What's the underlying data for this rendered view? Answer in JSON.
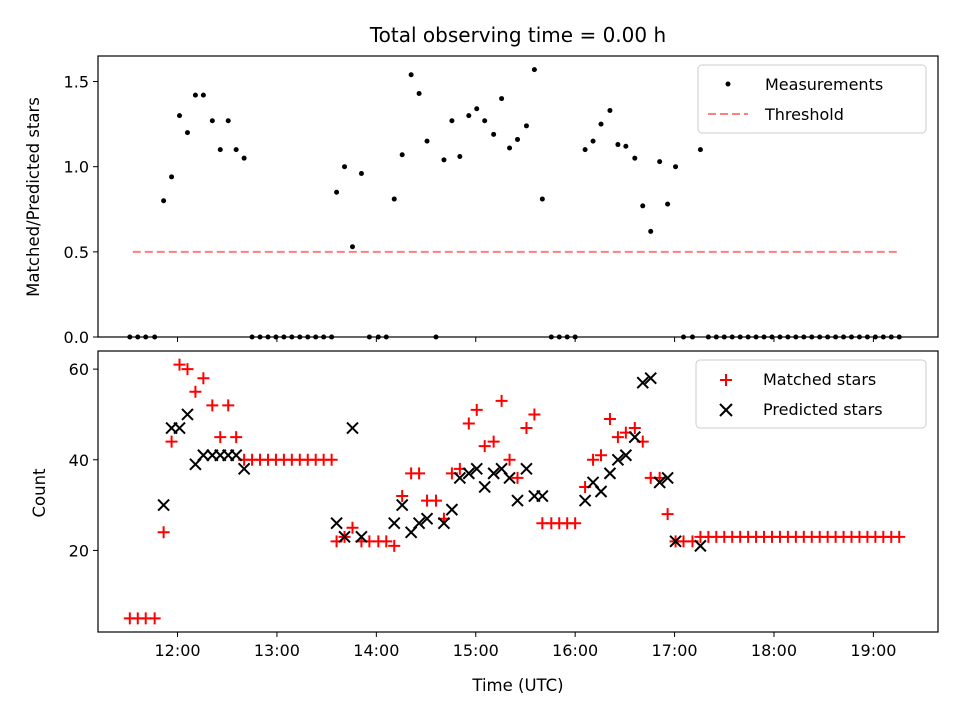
{
  "chart_data": [
    {
      "type": "scatter",
      "title": "Total observing time = 0.00 h",
      "xlabel": "",
      "ylabel": "Matched/Predicted stars",
      "xlim": [
        11.2,
        19.65
      ],
      "ylim": [
        0,
        1.65
      ],
      "xticks": [
        {
          "value": 12,
          "label": ""
        },
        {
          "value": 13,
          "label": ""
        },
        {
          "value": 14,
          "label": ""
        },
        {
          "value": 15,
          "label": ""
        },
        {
          "value": 16,
          "label": ""
        },
        {
          "value": 17,
          "label": ""
        },
        {
          "value": 18,
          "label": ""
        },
        {
          "value": 19,
          "label": ""
        }
      ],
      "yticks": [
        {
          "value": 0,
          "label": "0.0"
        },
        {
          "value": 0.5,
          "label": "0.5"
        },
        {
          "value": 1.0,
          "label": "1.0"
        },
        {
          "value": 1.5,
          "label": "1.5"
        }
      ],
      "legend": "top-right",
      "series": [
        {
          "name": "Measurements",
          "kind": "scatter",
          "marker": "dot",
          "color": "#000000",
          "points": [
            [
              11.52,
              0
            ],
            [
              11.6,
              0
            ],
            [
              11.68,
              0
            ],
            [
              11.77,
              0
            ],
            [
              11.86,
              0.8
            ],
            [
              11.94,
              0.94
            ],
            [
              12.02,
              1.3
            ],
            [
              12.1,
              1.2
            ],
            [
              12.18,
              1.42
            ],
            [
              12.26,
              1.42
            ],
            [
              12.35,
              1.27
            ],
            [
              12.43,
              1.1
            ],
            [
              12.51,
              1.27
            ],
            [
              12.59,
              1.1
            ],
            [
              12.67,
              1.05
            ],
            [
              12.75,
              0
            ],
            [
              12.83,
              0
            ],
            [
              12.91,
              0
            ],
            [
              12.99,
              0
            ],
            [
              13.07,
              0
            ],
            [
              13.15,
              0
            ],
            [
              13.23,
              0
            ],
            [
              13.31,
              0
            ],
            [
              13.39,
              0
            ],
            [
              13.47,
              0
            ],
            [
              13.55,
              0
            ],
            [
              13.6,
              0.85
            ],
            [
              13.68,
              1.0
            ],
            [
              13.76,
              0.53
            ],
            [
              13.85,
              0.96
            ],
            [
              13.93,
              0
            ],
            [
              14.02,
              0
            ],
            [
              14.1,
              0
            ],
            [
              14.18,
              0.81
            ],
            [
              14.26,
              1.07
            ],
            [
              14.35,
              1.54
            ],
            [
              14.43,
              1.43
            ],
            [
              14.51,
              1.15
            ],
            [
              14.6,
              0
            ],
            [
              14.68,
              1.04
            ],
            [
              14.76,
              1.27
            ],
            [
              14.84,
              1.06
            ],
            [
              14.93,
              1.3
            ],
            [
              15.01,
              1.34
            ],
            [
              15.09,
              1.27
            ],
            [
              15.18,
              1.19
            ],
            [
              15.26,
              1.4
            ],
            [
              15.34,
              1.11
            ],
            [
              15.42,
              1.16
            ],
            [
              15.51,
              1.24
            ],
            [
              15.59,
              1.57
            ],
            [
              15.67,
              0.81
            ],
            [
              15.76,
              0
            ],
            [
              15.84,
              0
            ],
            [
              15.92,
              0
            ],
            [
              16.0,
              0
            ],
            [
              16.1,
              1.1
            ],
            [
              16.18,
              1.15
            ],
            [
              16.26,
              1.25
            ],
            [
              16.35,
              1.33
            ],
            [
              16.43,
              1.13
            ],
            [
              16.51,
              1.12
            ],
            [
              16.6,
              1.05
            ],
            [
              16.68,
              0.77
            ],
            [
              16.76,
              0.62
            ],
            [
              16.85,
              1.03
            ],
            [
              16.93,
              0.78
            ],
            [
              17.01,
              1.0
            ],
            [
              17.09,
              0
            ],
            [
              17.18,
              0
            ],
            [
              17.26,
              1.1
            ],
            [
              17.34,
              0
            ],
            [
              17.42,
              0
            ],
            [
              17.5,
              0
            ],
            [
              17.58,
              0
            ],
            [
              17.66,
              0
            ],
            [
              17.74,
              0
            ],
            [
              17.82,
              0
            ],
            [
              17.9,
              0
            ],
            [
              17.98,
              0
            ],
            [
              18.06,
              0
            ],
            [
              18.14,
              0
            ],
            [
              18.22,
              0
            ],
            [
              18.3,
              0
            ],
            [
              18.38,
              0
            ],
            [
              18.46,
              0
            ],
            [
              18.54,
              0
            ],
            [
              18.62,
              0
            ],
            [
              18.7,
              0
            ],
            [
              18.78,
              0
            ],
            [
              18.86,
              0
            ],
            [
              18.94,
              0
            ],
            [
              19.02,
              0
            ],
            [
              19.1,
              0
            ],
            [
              19.18,
              0
            ],
            [
              19.26,
              0
            ]
          ]
        },
        {
          "name": "Threshold",
          "kind": "dashed-line",
          "color": "#ff7f7f",
          "points": [
            [
              11.55,
              0.5
            ],
            [
              19.25,
              0.5
            ]
          ]
        }
      ]
    },
    {
      "type": "scatter",
      "title": "",
      "xlabel": "Time (UTC)",
      "ylabel": "Count",
      "xlim": [
        11.2,
        19.65
      ],
      "ylim": [
        2,
        64
      ],
      "xticks": [
        {
          "value": 12,
          "label": "12:00"
        },
        {
          "value": 13,
          "label": "13:00"
        },
        {
          "value": 14,
          "label": "14:00"
        },
        {
          "value": 15,
          "label": "15:00"
        },
        {
          "value": 16,
          "label": "16:00"
        },
        {
          "value": 17,
          "label": "17:00"
        },
        {
          "value": 18,
          "label": "18:00"
        },
        {
          "value": 19,
          "label": "19:00"
        }
      ],
      "yticks": [
        {
          "value": 20,
          "label": "20"
        },
        {
          "value": 40,
          "label": "40"
        },
        {
          "value": 60,
          "label": "60"
        }
      ],
      "legend": "top-right",
      "series": [
        {
          "name": "Matched stars",
          "kind": "scatter",
          "marker": "plus",
          "color": "#ff0000",
          "points": [
            [
              11.52,
              5
            ],
            [
              11.6,
              5
            ],
            [
              11.68,
              5
            ],
            [
              11.77,
              5
            ],
            [
              11.86,
              24
            ],
            [
              11.94,
              44
            ],
            [
              12.02,
              61
            ],
            [
              12.1,
              60
            ],
            [
              12.18,
              55
            ],
            [
              12.26,
              58
            ],
            [
              12.35,
              52
            ],
            [
              12.43,
              45
            ],
            [
              12.51,
              52
            ],
            [
              12.59,
              45
            ],
            [
              12.67,
              40
            ],
            [
              12.75,
              40
            ],
            [
              12.83,
              40
            ],
            [
              12.91,
              40
            ],
            [
              12.99,
              40
            ],
            [
              13.07,
              40
            ],
            [
              13.15,
              40
            ],
            [
              13.23,
              40
            ],
            [
              13.31,
              40
            ],
            [
              13.39,
              40
            ],
            [
              13.47,
              40
            ],
            [
              13.55,
              40
            ],
            [
              13.6,
              22
            ],
            [
              13.68,
              23
            ],
            [
              13.76,
              25
            ],
            [
              13.85,
              22
            ],
            [
              13.93,
              22
            ],
            [
              14.02,
              22
            ],
            [
              14.1,
              22
            ],
            [
              14.18,
              21
            ],
            [
              14.26,
              32
            ],
            [
              14.35,
              37
            ],
            [
              14.43,
              37
            ],
            [
              14.51,
              31
            ],
            [
              14.6,
              31
            ],
            [
              14.68,
              27
            ],
            [
              14.76,
              37
            ],
            [
              14.84,
              38
            ],
            [
              14.93,
              48
            ],
            [
              15.01,
              51
            ],
            [
              15.09,
              43
            ],
            [
              15.18,
              44
            ],
            [
              15.26,
              53
            ],
            [
              15.34,
              40
            ],
            [
              15.42,
              36
            ],
            [
              15.51,
              47
            ],
            [
              15.59,
              50
            ],
            [
              15.67,
              26
            ],
            [
              15.76,
              26
            ],
            [
              15.84,
              26
            ],
            [
              15.92,
              26
            ],
            [
              16.0,
              26
            ],
            [
              16.1,
              34
            ],
            [
              16.18,
              40
            ],
            [
              16.26,
              41
            ],
            [
              16.35,
              49
            ],
            [
              16.43,
              45
            ],
            [
              16.51,
              46
            ],
            [
              16.6,
              47
            ],
            [
              16.68,
              44
            ],
            [
              16.76,
              36
            ],
            [
              16.85,
              36
            ],
            [
              16.93,
              28
            ],
            [
              17.01,
              22
            ],
            [
              17.09,
              22
            ],
            [
              17.18,
              22
            ],
            [
              17.26,
              23
            ],
            [
              17.34,
              23
            ],
            [
              17.42,
              23
            ],
            [
              17.5,
              23
            ],
            [
              17.58,
              23
            ],
            [
              17.66,
              23
            ],
            [
              17.74,
              23
            ],
            [
              17.82,
              23
            ],
            [
              17.9,
              23
            ],
            [
              17.98,
              23
            ],
            [
              18.06,
              23
            ],
            [
              18.14,
              23
            ],
            [
              18.22,
              23
            ],
            [
              18.3,
              23
            ],
            [
              18.38,
              23
            ],
            [
              18.46,
              23
            ],
            [
              18.54,
              23
            ],
            [
              18.62,
              23
            ],
            [
              18.7,
              23
            ],
            [
              18.78,
              23
            ],
            [
              18.86,
              23
            ],
            [
              18.94,
              23
            ],
            [
              19.02,
              23
            ],
            [
              19.1,
              23
            ],
            [
              19.18,
              23
            ],
            [
              19.26,
              23
            ]
          ]
        },
        {
          "name": "Predicted stars",
          "kind": "scatter",
          "marker": "x",
          "color": "#000000",
          "points": [
            [
              11.86,
              30
            ],
            [
              11.94,
              47
            ],
            [
              12.02,
              47
            ],
            [
              12.1,
              50
            ],
            [
              12.18,
              39
            ],
            [
              12.26,
              41
            ],
            [
              12.35,
              41
            ],
            [
              12.43,
              41
            ],
            [
              12.51,
              41
            ],
            [
              12.59,
              41
            ],
            [
              12.67,
              38
            ],
            [
              13.6,
              26
            ],
            [
              13.68,
              23
            ],
            [
              13.76,
              47
            ],
            [
              13.85,
              23
            ],
            [
              14.18,
              26
            ],
            [
              14.26,
              30
            ],
            [
              14.35,
              24
            ],
            [
              14.43,
              26
            ],
            [
              14.51,
              27
            ],
            [
              14.68,
              26
            ],
            [
              14.76,
              29
            ],
            [
              14.84,
              36
            ],
            [
              14.93,
              37
            ],
            [
              15.01,
              38
            ],
            [
              15.09,
              34
            ],
            [
              15.18,
              37
            ],
            [
              15.26,
              38
            ],
            [
              15.34,
              36
            ],
            [
              15.42,
              31
            ],
            [
              15.51,
              38
            ],
            [
              15.59,
              32
            ],
            [
              15.67,
              32
            ],
            [
              16.1,
              31
            ],
            [
              16.18,
              35
            ],
            [
              16.26,
              33
            ],
            [
              16.35,
              37
            ],
            [
              16.43,
              40
            ],
            [
              16.51,
              41
            ],
            [
              16.6,
              45
            ],
            [
              16.68,
              57
            ],
            [
              16.76,
              58
            ],
            [
              16.85,
              35
            ],
            [
              16.93,
              36
            ],
            [
              17.01,
              22
            ],
            [
              17.26,
              21
            ]
          ]
        }
      ]
    }
  ]
}
